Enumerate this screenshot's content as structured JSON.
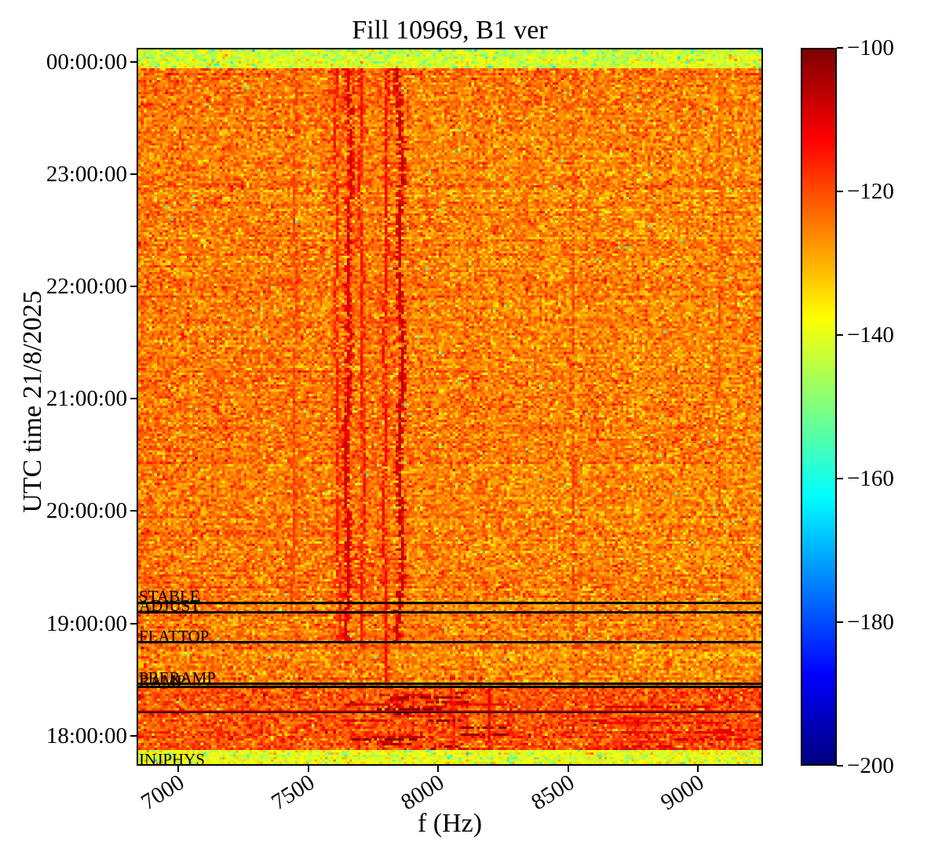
{
  "figure": {
    "background": "#ffffff"
  },
  "chart_data": {
    "type": "heatmap",
    "title": "Fill 10969, B1 ver",
    "xlabel": "f (Hz)",
    "ylabel": "UTC time 21/8/2025",
    "x_tick_labels": [
      "7000",
      "7500",
      "8000",
      "8500",
      "9000"
    ],
    "x_tick_values": [
      7000,
      7500,
      8000,
      8500,
      9000
    ],
    "y_tick_labels": [
      "00:00:00",
      "23:00:00",
      "22:00:00",
      "21:00:00",
      "20:00:00",
      "19:00:00",
      "18:00:00"
    ],
    "y_tick_hours": [
      24,
      23,
      22,
      21,
      20,
      19,
      18
    ],
    "x_range_hz": [
      6840,
      9250
    ],
    "time_range_hours": [
      17.733,
      24.125
    ],
    "colormap": "jet",
    "clim_db": [
      -200,
      -100
    ],
    "colorbar_tick_labels": [
      "−100",
      "−120",
      "−140",
      "−160",
      "−180",
      "−200"
    ],
    "colorbar_tick_values": [
      -100,
      -120,
      -140,
      -160,
      -180,
      -200
    ],
    "noise": {
      "main_level_db": -125,
      "main_std_db": 4.8,
      "seed": 1234
    },
    "regions": [
      {
        "name": "no-beam-top",
        "t0": 23.96,
        "t1": 24.125,
        "level_db": -141.5,
        "std_db": 4.5
      },
      {
        "name": "main",
        "t0": 18.43,
        "t1": 23.96,
        "level_db": -125,
        "std_db": 4.8
      },
      {
        "name": "ramp-injection-band",
        "t0": 17.859,
        "t1": 18.43,
        "level_db": -120,
        "std_db": 5
      },
      {
        "name": "injphys-bottom",
        "t0": 17.733,
        "t1": 17.859,
        "level_db": -138.8,
        "std_db": 4
      }
    ],
    "line_cluster_hz": [
      7590,
      7870
    ],
    "spectral_lines": [
      {
        "f_hz": 7441,
        "level_db": -118.5,
        "t0": 18.96,
        "t1": 23.96,
        "width_hz": 9
      },
      {
        "f_hz": 7607,
        "level_db": -115,
        "t0": 18.83,
        "t1": 23.96,
        "width_hz": 9
      },
      {
        "f_hz": 7649,
        "level_db": -108.5,
        "t0": 18.83,
        "t1": 23.96,
        "width_hz": 12
      },
      {
        "f_hz": 7698,
        "level_db": -114,
        "t0": 18.76,
        "t1": 23.96,
        "width_hz": 9
      },
      {
        "f_hz": 7794,
        "level_db": -112.5,
        "t0": 18.47,
        "t1": 23.96,
        "width_hz": 9
      },
      {
        "f_hz": 7846,
        "level_db": -106.5,
        "t0": 18.83,
        "t1": 23.96,
        "width_hz": 12
      },
      {
        "f_hz": 8513,
        "level_db": -119,
        "t0": 17.859,
        "t1": 23.96,
        "width_hz": 9
      },
      {
        "f_hz": 9081,
        "level_db": -121,
        "t0": 20.08,
        "t1": 23.96,
        "width_hz": 6
      },
      {
        "f_hz": 8045,
        "level_db": -114,
        "t0": 17.859,
        "t1": 18.43,
        "width_hz": 9
      },
      {
        "f_hz": 8196,
        "level_db": -111,
        "t0": 17.859,
        "t1": 18.43,
        "width_hz": 9
      }
    ],
    "beam_modes": [
      {
        "label": "STABLE",
        "hours": 19.186,
        "has_line": true
      },
      {
        "label": "ADJUST",
        "hours": 19.102,
        "has_line": true
      },
      {
        "label": "FLATTOP",
        "hours": 18.83,
        "has_line": true
      },
      {
        "label": "PRERAMP",
        "hours": 18.463,
        "has_line": true
      },
      {
        "label": "RAMP",
        "hours": 18.432,
        "has_line": true
      },
      {
        "label": "INJPHYS",
        "hours": 17.8,
        "has_line": false
      }
    ],
    "extra_line_hours": 18.215
  }
}
